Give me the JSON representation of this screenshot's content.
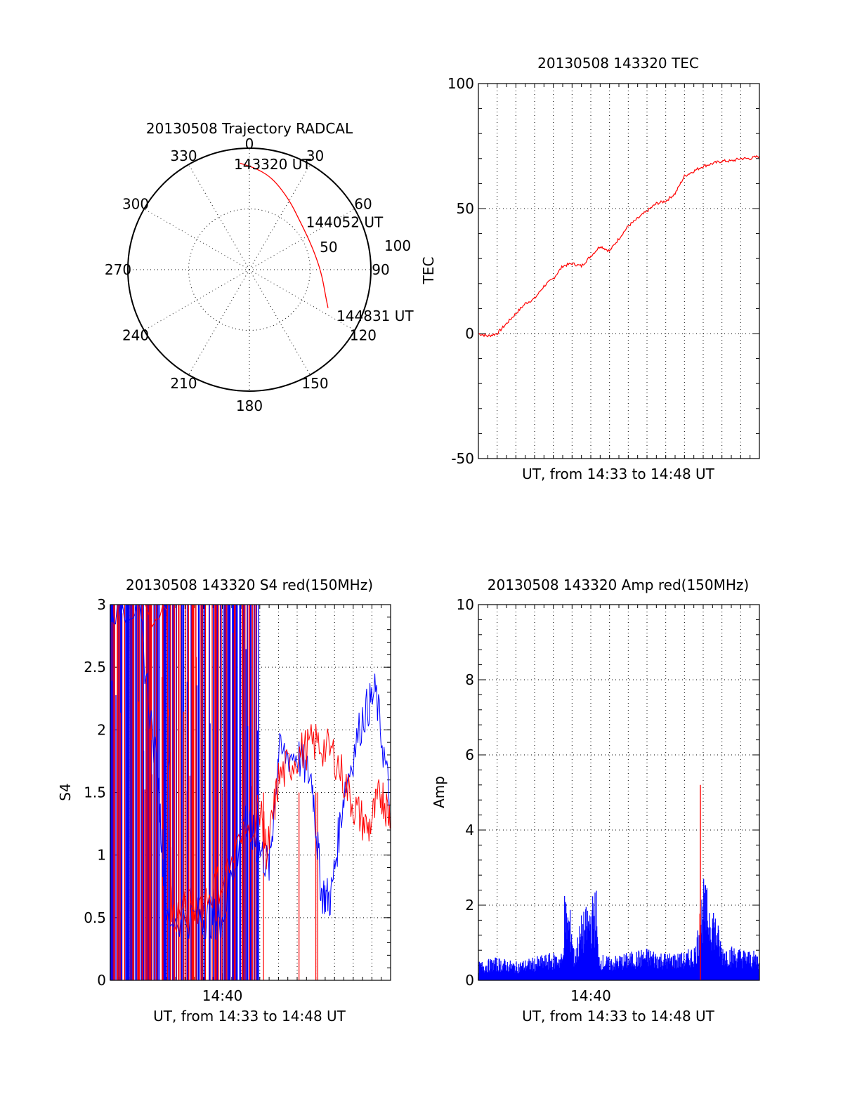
{
  "colors": {
    "red": "#ff0000",
    "blue": "#0000ff",
    "axis": "#000000"
  },
  "chart_data": [
    {
      "type": "polar",
      "title": "20130508 Trajectory RADCAL",
      "azimuth_labels": [
        "0",
        "30",
        "60",
        "90",
        "120",
        "150",
        "180",
        "210",
        "240",
        "270",
        "300",
        "330"
      ],
      "radius_labels": [
        "50",
        "100"
      ],
      "rlim": [
        0,
        100
      ],
      "track": [
        {
          "azimuth": -5,
          "radius": 88
        },
        {
          "azimuth": 5,
          "radius": 83
        },
        {
          "azimuth": 15,
          "radius": 77
        },
        {
          "azimuth": 30,
          "radius": 66
        },
        {
          "azimuth": 45,
          "radius": 58
        },
        {
          "azimuth": 62,
          "radius": 55
        },
        {
          "azimuth": 80,
          "radius": 56
        },
        {
          "azimuth": 95,
          "radius": 60
        },
        {
          "azimuth": 110,
          "radius": 67
        },
        {
          "azimuth": 116,
          "radius": 72
        }
      ],
      "annotations": [
        {
          "text": "143320 UT",
          "azimuth": 0,
          "radius": 88
        },
        {
          "text": "144052 UT",
          "azimuth": 63,
          "radius": 64
        },
        {
          "text": "144831 UT",
          "azimuth": 119,
          "radius": 82
        }
      ],
      "series_color": "#ff0000"
    },
    {
      "type": "line",
      "title": "20130508 143320 TEC",
      "xlabel": "UT, from 14:33 to 14:48 UT",
      "ylabel": "TEC",
      "xlim": [
        0,
        15
      ],
      "ylim": [
        -50,
        100
      ],
      "yticks": [
        "100",
        "50",
        "0",
        "-50"
      ],
      "xticks": [],
      "x": [
        0.0,
        0.5,
        1.0,
        1.5,
        2.0,
        2.5,
        3.0,
        3.5,
        4.0,
        4.5,
        5.0,
        5.5,
        6.0,
        6.5,
        7.0,
        7.5,
        8.0,
        8.5,
        9.0,
        9.5,
        10.0,
        10.5,
        11.0,
        11.5,
        12.0,
        12.5,
        13.0,
        13.5,
        14.0,
        14.5,
        15.0
      ],
      "series": [
        {
          "name": "TEC",
          "color": "#ff0000",
          "values": [
            0,
            -1,
            0,
            4,
            8,
            12,
            14,
            19,
            22,
            27,
            28,
            27,
            31,
            35,
            33,
            38,
            43,
            46,
            49,
            52,
            53,
            56,
            63,
            65,
            67,
            68,
            69,
            69,
            70,
            70,
            71
          ]
        }
      ]
    },
    {
      "type": "line",
      "title": "20130508 143320 S4 red(150MHz)",
      "xlabel": "UT, from 14:33 to 14:48 UT",
      "ylabel": "S4",
      "xlim": [
        0,
        15
      ],
      "ylim": [
        0,
        3
      ],
      "yticks": [
        "3",
        "2.5",
        "2",
        "1.5",
        "1",
        "0.5",
        "0"
      ],
      "xticks": [
        {
          "label": "14:40",
          "value": 6
        }
      ],
      "series": [
        {
          "name": "blue",
          "color": "#0000ff",
          "x": [
            0,
            1.5,
            2.6,
            3.0,
            4.6,
            5.4,
            6.0,
            7.2,
            7.8,
            8.5,
            9.0,
            10.0,
            10.8,
            11.3,
            11.8,
            12.5,
            13.5,
            14.2,
            15.0
          ],
          "values": [
            3,
            3,
            1.5,
            0.5,
            0.5,
            0.5,
            0.5,
            1.3,
            1.1,
            0.9,
            1.8,
            1.8,
            1.6,
            0.7,
            0.65,
            1.5,
            2.1,
            2.3,
            1.4
          ]
        },
        {
          "name": "red",
          "color": "#ff0000",
          "x": [
            0,
            3.0,
            3.3,
            4.6,
            6.0,
            8.0,
            8.4,
            9.0,
            10.0,
            11.0,
            12.0,
            13.0,
            13.8,
            14.5,
            15.0
          ],
          "values": [
            3,
            3,
            0.5,
            0.6,
            0.8,
            1.4,
            1.0,
            1.6,
            1.8,
            1.9,
            1.8,
            1.4,
            1.2,
            1.5,
            1.3
          ]
        }
      ]
    },
    {
      "type": "line",
      "title": "20130508 143320 Amp red(150MHz)",
      "xlabel": "UT, from 14:33 to 14:48 UT",
      "ylabel": "Amp",
      "xlim": [
        0,
        15
      ],
      "ylim": [
        0,
        10
      ],
      "yticks": [
        "10",
        "8",
        "6",
        "4",
        "2",
        "0"
      ],
      "xticks": [
        {
          "label": "14:40",
          "value": 6
        }
      ],
      "series": [
        {
          "name": "blue",
          "color": "#0000ff",
          "x": [
            0,
            1,
            2,
            3,
            4,
            4.5,
            4.6,
            5.0,
            5.1,
            5.5,
            6.3,
            6.4,
            7.0,
            8.0,
            9.0,
            10.0,
            11.0,
            11.6,
            12.0,
            12.6,
            13.0,
            14.0,
            15.0
          ],
          "values": [
            0.4,
            0.5,
            0.4,
            0.5,
            0.6,
            0.6,
            1.9,
            1.4,
            0.6,
            1.4,
            2.0,
            0.6,
            0.5,
            0.6,
            0.7,
            0.6,
            0.6,
            0.8,
            2.2,
            1.6,
            0.8,
            0.7,
            0.6
          ]
        },
        {
          "name": "red",
          "color": "#ff0000",
          "x": [
            0,
            5,
            9,
            11.8,
            11.85,
            11.9,
            13,
            15
          ],
          "values": [
            0.2,
            0.3,
            0.4,
            0.4,
            5.2,
            0.4,
            0.3,
            0.3
          ]
        }
      ]
    }
  ]
}
